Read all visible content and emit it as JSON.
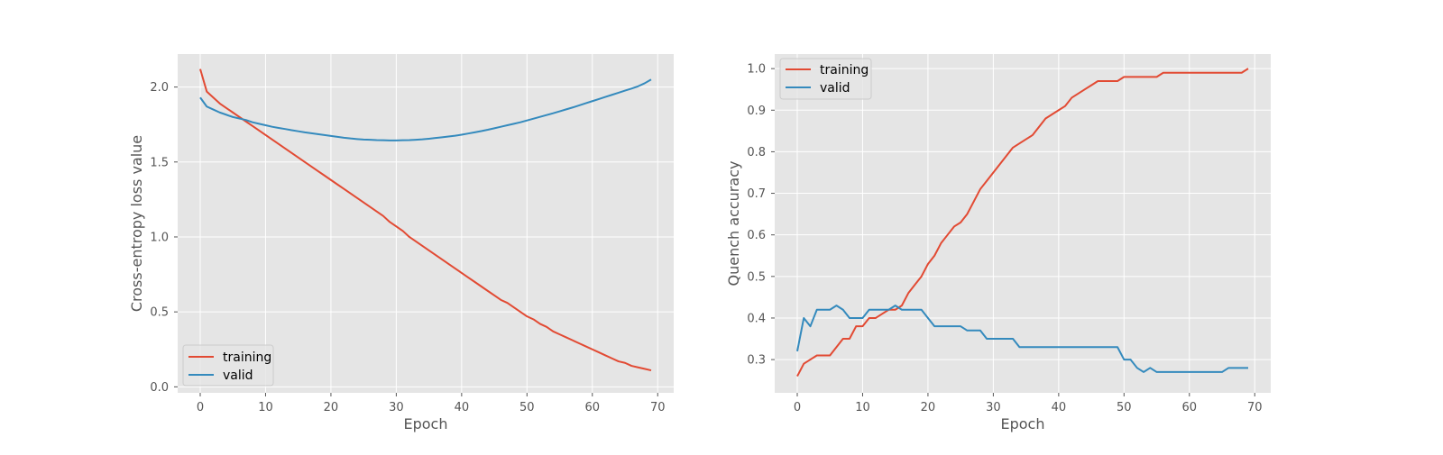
{
  "colors": {
    "training": "#e24a33",
    "valid": "#348abd",
    "panel_bg": "#e5e5e5",
    "grid": "#ffffff"
  },
  "chart_data": [
    {
      "type": "line",
      "title": "",
      "xlabel": "Epoch",
      "ylabel": "Cross-entropy loss value",
      "xlim": [
        -3.45,
        72.45
      ],
      "ylim": [
        -0.04,
        2.22
      ],
      "xticks": [
        0,
        10,
        20,
        30,
        40,
        50,
        60,
        70
      ],
      "yticks": [
        0.0,
        0.5,
        1.0,
        1.5,
        2.0
      ],
      "ytick_labels": [
        "0.0",
        "0.5",
        "1.0",
        "1.5",
        "2.0"
      ],
      "grid": true,
      "legend_position": "lower-left",
      "series": [
        {
          "name": "training",
          "color": "#e24a33",
          "x": [
            0,
            1,
            2,
            3,
            4,
            5,
            6,
            7,
            8,
            9,
            10,
            11,
            12,
            13,
            14,
            15,
            16,
            17,
            18,
            19,
            20,
            21,
            22,
            23,
            24,
            25,
            26,
            27,
            28,
            29,
            30,
            31,
            32,
            33,
            34,
            35,
            36,
            37,
            38,
            39,
            40,
            41,
            42,
            43,
            44,
            45,
            46,
            47,
            48,
            49,
            50,
            51,
            52,
            53,
            54,
            55,
            56,
            57,
            58,
            59,
            60,
            61,
            62,
            63,
            64,
            65,
            66,
            67,
            68,
            69
          ],
          "values": [
            2.12,
            1.97,
            1.93,
            1.89,
            1.86,
            1.83,
            1.8,
            1.77,
            1.74,
            1.71,
            1.68,
            1.65,
            1.62,
            1.59,
            1.56,
            1.53,
            1.5,
            1.47,
            1.44,
            1.41,
            1.38,
            1.35,
            1.32,
            1.29,
            1.26,
            1.23,
            1.2,
            1.17,
            1.14,
            1.1,
            1.07,
            1.04,
            1.0,
            0.97,
            0.94,
            0.91,
            0.88,
            0.85,
            0.82,
            0.79,
            0.76,
            0.73,
            0.7,
            0.67,
            0.64,
            0.61,
            0.58,
            0.56,
            0.53,
            0.5,
            0.47,
            0.45,
            0.42,
            0.4,
            0.37,
            0.35,
            0.33,
            0.31,
            0.29,
            0.27,
            0.25,
            0.23,
            0.21,
            0.19,
            0.17,
            0.16,
            0.14,
            0.13,
            0.12,
            0.11
          ]
        },
        {
          "name": "valid",
          "color": "#348abd",
          "x": [
            0,
            1,
            2,
            3,
            4,
            5,
            6,
            7,
            8,
            9,
            10,
            11,
            12,
            13,
            14,
            15,
            16,
            17,
            18,
            19,
            20,
            21,
            22,
            23,
            24,
            25,
            26,
            27,
            28,
            29,
            30,
            31,
            32,
            33,
            34,
            35,
            36,
            37,
            38,
            39,
            40,
            41,
            42,
            43,
            44,
            45,
            46,
            47,
            48,
            49,
            50,
            51,
            52,
            53,
            54,
            55,
            56,
            57,
            58,
            59,
            60,
            61,
            62,
            63,
            64,
            65,
            66,
            67,
            68,
            69
          ],
          "values": [
            1.93,
            1.87,
            1.85,
            1.83,
            1.815,
            1.8,
            1.79,
            1.78,
            1.765,
            1.755,
            1.745,
            1.735,
            1.727,
            1.72,
            1.712,
            1.705,
            1.698,
            1.692,
            1.686,
            1.68,
            1.674,
            1.668,
            1.662,
            1.657,
            1.653,
            1.65,
            1.648,
            1.646,
            1.645,
            1.644,
            1.644,
            1.645,
            1.646,
            1.648,
            1.651,
            1.655,
            1.66,
            1.665,
            1.67,
            1.675,
            1.682,
            1.69,
            1.698,
            1.706,
            1.715,
            1.725,
            1.735,
            1.745,
            1.755,
            1.765,
            1.777,
            1.789,
            1.801,
            1.813,
            1.825,
            1.838,
            1.851,
            1.864,
            1.878,
            1.892,
            1.906,
            1.92,
            1.934,
            1.948,
            1.962,
            1.976,
            1.99,
            2.005,
            2.025,
            2.05
          ]
        }
      ]
    },
    {
      "type": "line",
      "title": "",
      "xlabel": "Epoch",
      "ylabel": "Quench accuracy",
      "xlim": [
        -3.45,
        72.45
      ],
      "ylim": [
        0.22,
        1.035
      ],
      "xticks": [
        0,
        10,
        20,
        30,
        40,
        50,
        60,
        70
      ],
      "yticks": [
        0.3,
        0.4,
        0.5,
        0.6,
        0.7,
        0.8,
        0.9,
        1.0
      ],
      "ytick_labels": [
        "0.3",
        "0.4",
        "0.5",
        "0.6",
        "0.7",
        "0.8",
        "0.9",
        "1.0"
      ],
      "grid": true,
      "legend_position": "upper-left",
      "series": [
        {
          "name": "training",
          "color": "#e24a33",
          "x": [
            0,
            1,
            2,
            3,
            4,
            5,
            6,
            7,
            8,
            9,
            10,
            11,
            12,
            13,
            14,
            15,
            16,
            17,
            18,
            19,
            20,
            21,
            22,
            23,
            24,
            25,
            26,
            27,
            28,
            29,
            30,
            31,
            32,
            33,
            34,
            35,
            36,
            37,
            38,
            39,
            40,
            41,
            42,
            43,
            44,
            45,
            46,
            47,
            48,
            49,
            50,
            51,
            52,
            53,
            54,
            55,
            56,
            57,
            58,
            59,
            60,
            61,
            62,
            63,
            64,
            65,
            66,
            67,
            68,
            69
          ],
          "values": [
            0.26,
            0.29,
            0.3,
            0.31,
            0.31,
            0.31,
            0.33,
            0.35,
            0.35,
            0.38,
            0.38,
            0.4,
            0.4,
            0.41,
            0.42,
            0.42,
            0.43,
            0.46,
            0.48,
            0.5,
            0.53,
            0.55,
            0.58,
            0.6,
            0.62,
            0.63,
            0.65,
            0.68,
            0.71,
            0.73,
            0.75,
            0.77,
            0.79,
            0.81,
            0.82,
            0.83,
            0.84,
            0.86,
            0.88,
            0.89,
            0.9,
            0.91,
            0.93,
            0.94,
            0.95,
            0.96,
            0.97,
            0.97,
            0.97,
            0.97,
            0.98,
            0.98,
            0.98,
            0.98,
            0.98,
            0.98,
            0.99,
            0.99,
            0.99,
            0.99,
            0.99,
            0.99,
            0.99,
            0.99,
            0.99,
            0.99,
            0.99,
            0.99,
            0.99,
            1.0
          ]
        },
        {
          "name": "valid",
          "color": "#348abd",
          "x": [
            0,
            1,
            2,
            3,
            4,
            5,
            6,
            7,
            8,
            9,
            10,
            11,
            12,
            13,
            14,
            15,
            16,
            17,
            18,
            19,
            20,
            21,
            22,
            23,
            24,
            25,
            26,
            27,
            28,
            29,
            30,
            31,
            32,
            33,
            34,
            35,
            36,
            37,
            38,
            39,
            40,
            41,
            42,
            43,
            44,
            45,
            46,
            47,
            48,
            49,
            50,
            51,
            52,
            53,
            54,
            55,
            56,
            57,
            58,
            59,
            60,
            61,
            62,
            63,
            64,
            65,
            66,
            67,
            68,
            69
          ],
          "values": [
            0.32,
            0.4,
            0.38,
            0.42,
            0.42,
            0.42,
            0.43,
            0.42,
            0.4,
            0.4,
            0.4,
            0.42,
            0.42,
            0.42,
            0.42,
            0.43,
            0.42,
            0.42,
            0.42,
            0.42,
            0.4,
            0.38,
            0.38,
            0.38,
            0.38,
            0.38,
            0.37,
            0.37,
            0.37,
            0.35,
            0.35,
            0.35,
            0.35,
            0.35,
            0.33,
            0.33,
            0.33,
            0.33,
            0.33,
            0.33,
            0.33,
            0.33,
            0.33,
            0.33,
            0.33,
            0.33,
            0.33,
            0.33,
            0.33,
            0.33,
            0.3,
            0.3,
            0.28,
            0.27,
            0.28,
            0.27,
            0.27,
            0.27,
            0.27,
            0.27,
            0.27,
            0.27,
            0.27,
            0.27,
            0.27,
            0.27,
            0.28,
            0.28,
            0.28,
            0.28
          ]
        }
      ]
    }
  ]
}
